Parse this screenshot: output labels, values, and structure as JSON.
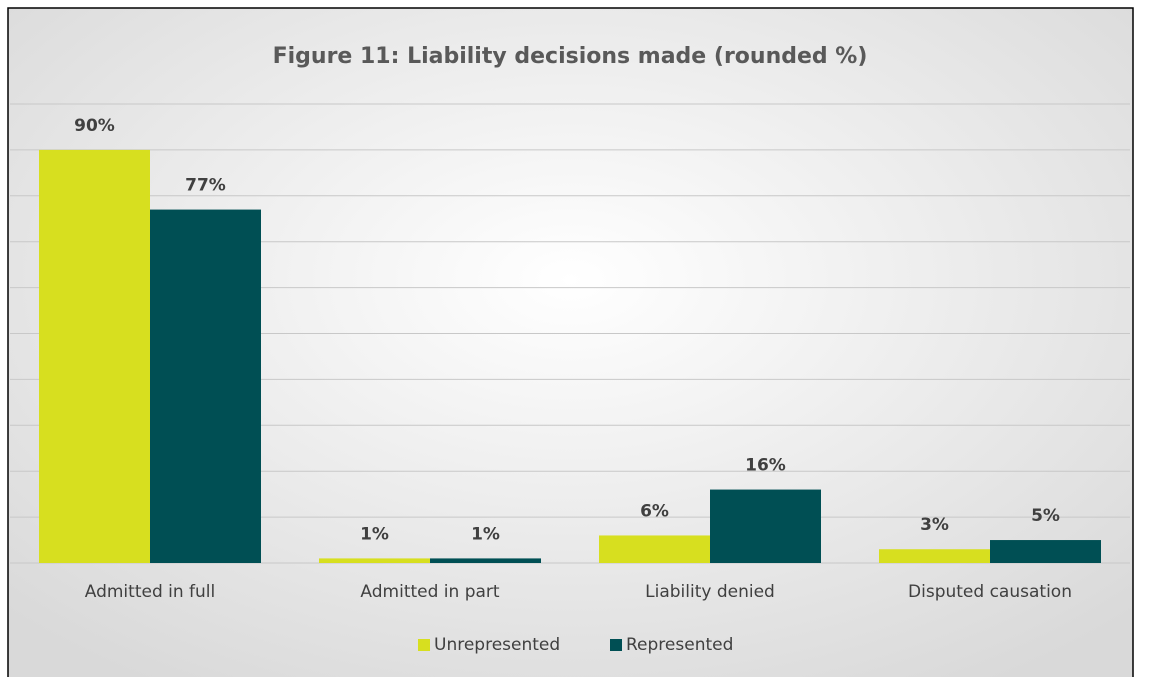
{
  "chart_data": {
    "type": "bar",
    "title": "Figure 11: Liability decisions made (rounded %)",
    "categories": [
      "Admitted in full",
      "Admitted in part",
      "Liability denied",
      "Disputed causation"
    ],
    "series": [
      {
        "name": "Unrepresented",
        "color": "#d7df1f",
        "values": [
          90,
          1,
          6,
          3
        ],
        "value_labels": [
          "90%",
          "1%",
          "6%",
          "3%"
        ]
      },
      {
        "name": "Represented",
        "color": "#004f54",
        "values": [
          77,
          1,
          16,
          5
        ],
        "value_labels": [
          "77%",
          "1%",
          "16%",
          "5%"
        ]
      }
    ],
    "ylim": [
      0,
      100
    ],
    "yticks": [
      0,
      10,
      20,
      30,
      40,
      50,
      60,
      70,
      80,
      90,
      100
    ],
    "grid": true,
    "legend": "bottom"
  }
}
